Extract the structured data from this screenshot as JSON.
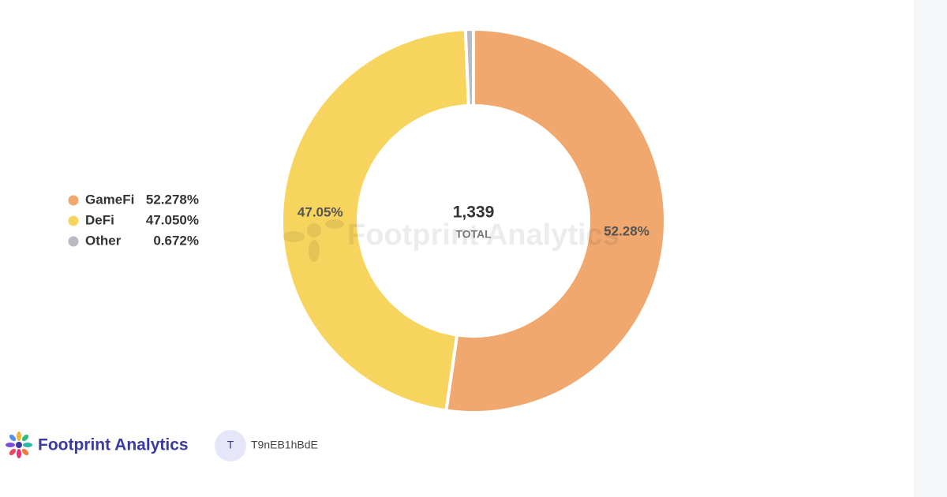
{
  "chart_data": {
    "type": "pie",
    "categories": [
      "GameFi",
      "DeFi",
      "Other"
    ],
    "values": [
      52.278,
      47.05,
      0.672
    ],
    "value_labels": [
      "52.278%",
      "47.050%",
      "0.672%"
    ],
    "slice_labels": [
      "52.28%",
      "47.05%",
      null
    ],
    "colors": [
      "#f0a86e",
      "#f7d45e",
      "#b9bac3"
    ],
    "donut": true,
    "legend": "left",
    "center_value": "1,339",
    "center_label": "TOTAL"
  },
  "watermark": "Footprint Analytics",
  "footer": {
    "brand": "Footprint Analytics",
    "avatar": "T",
    "user": "T9nEB1hBdE"
  }
}
